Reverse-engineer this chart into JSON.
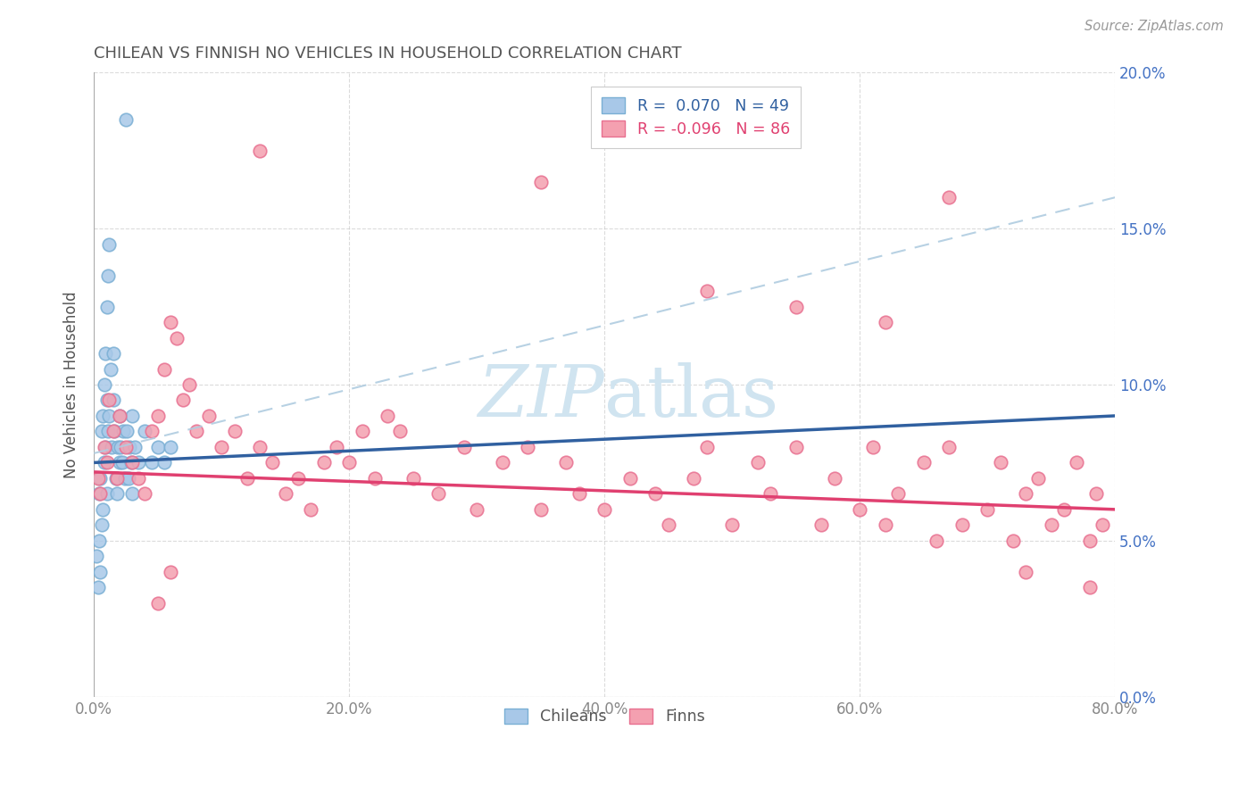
{
  "title": "CHILEAN VS FINNISH NO VEHICLES IN HOUSEHOLD CORRELATION CHART",
  "source": "Source: ZipAtlas.com",
  "ylabel": "No Vehicles in Household",
  "blue_color": "#a8c8e8",
  "pink_color": "#f4a0b0",
  "blue_edge_color": "#7aafd4",
  "pink_edge_color": "#e87090",
  "blue_line_color": "#3060a0",
  "pink_line_color": "#e04070",
  "blue_dashed_color": "#b0cce0",
  "watermark_color": "#d0e4f0",
  "background_color": "#ffffff",
  "grid_color": "#cccccc",
  "title_color": "#555555",
  "right_axis_color": "#4472c4",
  "tick_color": "#888888",
  "legend_blue_r": "R =  0.070",
  "legend_blue_n": "N = 49",
  "legend_pink_r": "R = -0.096",
  "legend_pink_n": "N = 86",
  "chilean_label": "Chileans",
  "finn_label": "Finns",
  "blue_regression": [
    7.5,
    9.0
  ],
  "pink_regression": [
    7.2,
    6.0
  ],
  "dashed_line": [
    7.8,
    16.0
  ],
  "chileans_x": [
    0.2,
    0.3,
    0.4,
    0.4,
    0.5,
    0.5,
    0.6,
    0.6,
    0.7,
    0.7,
    0.8,
    0.8,
    0.9,
    0.9,
    1.0,
    1.0,
    1.0,
    1.1,
    1.1,
    1.2,
    1.2,
    1.3,
    1.4,
    1.5,
    1.5,
    1.6,
    1.7,
    1.8,
    1.9,
    2.0,
    2.0,
    2.1,
    2.2,
    2.3,
    2.4,
    2.5,
    2.6,
    2.7,
    2.8,
    2.9,
    3.0,
    3.0,
    3.2,
    3.5,
    4.0,
    4.5,
    5.0,
    5.5,
    6.0
  ],
  "chileans_y": [
    4.5,
    3.5,
    5.0,
    6.5,
    4.0,
    7.0,
    5.5,
    8.5,
    6.0,
    9.0,
    7.5,
    10.0,
    8.0,
    11.0,
    6.5,
    9.5,
    12.5,
    8.5,
    13.5,
    9.0,
    14.5,
    10.5,
    8.0,
    9.5,
    11.0,
    8.5,
    7.0,
    6.5,
    8.0,
    7.5,
    9.0,
    8.0,
    7.5,
    8.5,
    7.0,
    18.5,
    8.5,
    7.0,
    8.0,
    7.5,
    9.0,
    6.5,
    8.0,
    7.5,
    8.5,
    7.5,
    8.0,
    7.5,
    8.0
  ],
  "finns_x": [
    0.3,
    0.5,
    0.8,
    1.0,
    1.2,
    1.5,
    1.8,
    2.0,
    2.5,
    3.0,
    3.5,
    4.0,
    4.5,
    5.0,
    5.5,
    6.0,
    6.5,
    7.0,
    7.5,
    8.0,
    9.0,
    10.0,
    11.0,
    12.0,
    13.0,
    14.0,
    15.0,
    16.0,
    17.0,
    18.0,
    19.0,
    20.0,
    21.0,
    22.0,
    23.0,
    24.0,
    25.0,
    27.0,
    29.0,
    30.0,
    32.0,
    34.0,
    35.0,
    37.0,
    38.0,
    40.0,
    42.0,
    44.0,
    45.0,
    47.0,
    48.0,
    50.0,
    52.0,
    53.0,
    55.0,
    57.0,
    58.0,
    60.0,
    61.0,
    62.0,
    63.0,
    65.0,
    66.0,
    67.0,
    68.0,
    70.0,
    71.0,
    72.0,
    73.0,
    74.0,
    75.0,
    76.0,
    77.0,
    78.0,
    78.5,
    79.0,
    13.0,
    35.0,
    48.0,
    55.0,
    62.0,
    67.0,
    73.0,
    78.0,
    5.0,
    6.0
  ],
  "finns_y": [
    7.0,
    6.5,
    8.0,
    7.5,
    9.5,
    8.5,
    7.0,
    9.0,
    8.0,
    7.5,
    7.0,
    6.5,
    8.5,
    9.0,
    10.5,
    12.0,
    11.5,
    9.5,
    10.0,
    8.5,
    9.0,
    8.0,
    8.5,
    7.0,
    8.0,
    7.5,
    6.5,
    7.0,
    6.0,
    7.5,
    8.0,
    7.5,
    8.5,
    7.0,
    9.0,
    8.5,
    7.0,
    6.5,
    8.0,
    6.0,
    7.5,
    8.0,
    6.0,
    7.5,
    6.5,
    6.0,
    7.0,
    6.5,
    5.5,
    7.0,
    8.0,
    5.5,
    7.5,
    6.5,
    8.0,
    5.5,
    7.0,
    6.0,
    8.0,
    5.5,
    6.5,
    7.5,
    5.0,
    8.0,
    5.5,
    6.0,
    7.5,
    5.0,
    6.5,
    7.0,
    5.5,
    6.0,
    7.5,
    5.0,
    6.5,
    5.5,
    17.5,
    16.5,
    13.0,
    12.5,
    12.0,
    16.0,
    4.0,
    3.5,
    3.0,
    4.0
  ]
}
